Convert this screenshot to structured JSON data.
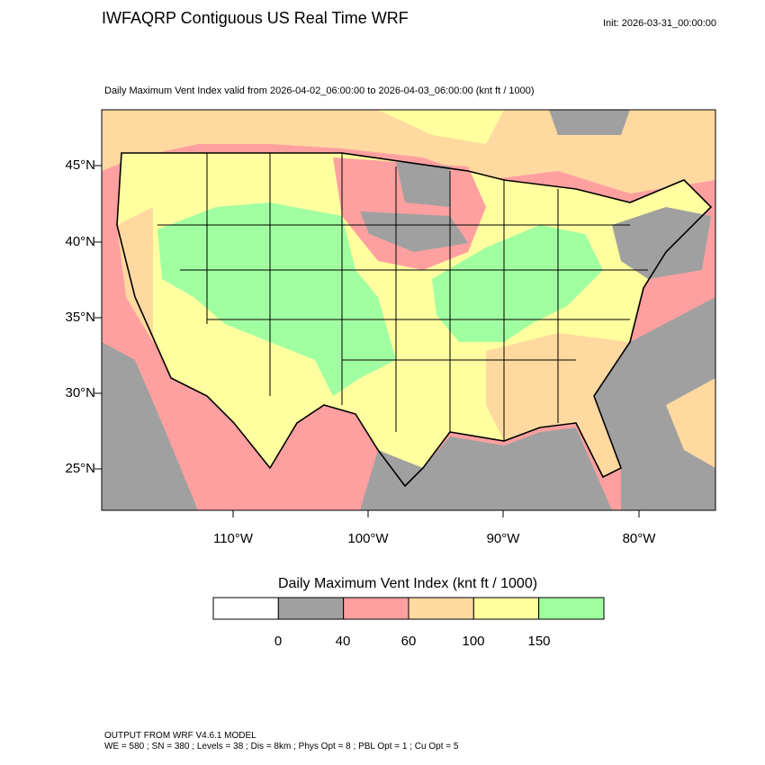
{
  "header": {
    "title": "IWFAQRP Contiguous US Real Time WRF",
    "init": "Init: 2026-03-31_00:00:00",
    "subtitle": "Daily Maximum Vent Index valid from 2026-04-02_06:00:00 to 2026-04-03_06:00:00   (knt ft / 1000)"
  },
  "map": {
    "lat_labels": [
      "45°N",
      "40°N",
      "35°N",
      "30°N",
      "25°N"
    ],
    "lon_labels": [
      "110°W",
      "100°W",
      "90°W",
      "80°W"
    ]
  },
  "colorbar": {
    "title": "Daily Maximum Vent Index  (knt ft / 1000)",
    "colors": [
      "#ffffff",
      "#a0a0a0",
      "#ffa0a0",
      "#ffd9a0",
      "#ffffa0",
      "#a0ffa0"
    ],
    "labels": [
      "0",
      "40",
      "60",
      "100",
      "150"
    ]
  },
  "footer": {
    "line1": "OUTPUT FROM WRF V4.6.1 MODEL",
    "line2": "WE = 580 ; SN = 380 ; Levels = 38 ; Dis = 8km ; Phys Opt = 8 ; PBL Opt = 1 ; Cu Opt = 5"
  }
}
